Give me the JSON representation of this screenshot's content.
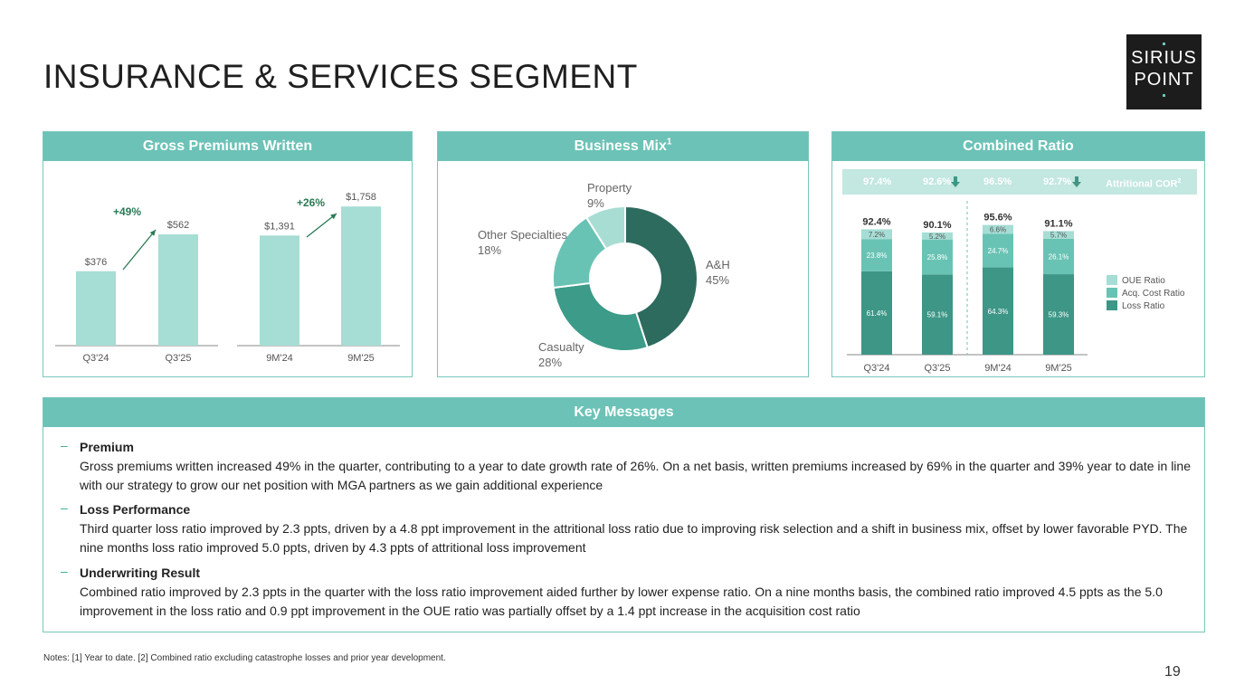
{
  "page": {
    "title": "INSURANCE & SERVICES SEGMENT",
    "logo": {
      "line1": "SIRIUS",
      "line2": "POINT"
    },
    "page_number": "19",
    "notes": "Notes: [1] Year to date. [2] Combined ratio excluding catastrophe losses and prior year development."
  },
  "gpw": {
    "header": "Gross Premiums Written",
    "growth_quarter": "+49%",
    "growth_ytd": "+26%"
  },
  "business_mix": {
    "header": "Business Mix",
    "header_sup": "1",
    "labels": {
      "ah": {
        "name": "A&H",
        "pct": "45%"
      },
      "casualty": {
        "name": "Casualty",
        "pct": "28%"
      },
      "other": {
        "name": "Other Specialties",
        "pct": "18%"
      },
      "property": {
        "name": "Property",
        "pct": "9%"
      }
    }
  },
  "combined_ratio": {
    "header": "Combined Ratio",
    "attritional_cor": [
      "97.4%",
      "92.6%",
      "96.5%",
      "92.7%"
    ],
    "attritional_label": "Attritional COR",
    "attritional_sup": "2",
    "totals": [
      "92.4%",
      "90.1%",
      "95.6%",
      "91.1%"
    ],
    "legend": [
      "OUE Ratio",
      "Acq. Cost Ratio",
      "Loss Ratio"
    ]
  },
  "key_messages": {
    "header": "Key Messages",
    "items": [
      {
        "heading": "Premium",
        "text": "Gross premiums written increased 49% in the quarter, contributing to a year to date growth rate of 26%. On a net basis, written premiums increased by 69% in the quarter and 39% year to date in line with our strategy to grow our net position with MGA partners as we gain additional experience"
      },
      {
        "heading": "Loss Performance",
        "text": "Third quarter loss ratio improved by 2.3 ppts, driven by a 4.8 ppt improvement in the attritional loss ratio due to improving risk selection and a shift in business mix, offset by lower favorable PYD. The nine months loss ratio improved 5.0 ppts, driven by 4.3 ppts of attritional loss improvement"
      },
      {
        "heading": "Underwriting Result",
        "text": "Combined ratio improved by 2.3 ppts in the quarter with the loss ratio improvement aided further by lower expense ratio. On a nine months basis, the combined ratio improved 4.5 ppts as the 5.0 improvement in the loss ratio and 0.9 ppt improvement in the OUE ratio was partially offset by a 1.4 ppt increase in the acquisition cost ratio"
      }
    ]
  },
  "colors": {
    "accent": "#6cc2b6",
    "bar_light": "#a6ddd4",
    "pie_ah": "#2e6b5f",
    "pie_casualty": "#3c9b89",
    "pie_other": "#69c3b4",
    "pie_property": "#a8ddd4",
    "loss": "#3d9686",
    "acq": "#69c3b4",
    "oue": "#a6ddd4"
  },
  "chart_data": [
    {
      "type": "bar",
      "title": "Gross Premiums Written",
      "categories": [
        "Q3'24",
        "Q3'25",
        "9M'24",
        "9M'25"
      ],
      "values": [
        376,
        562,
        1391,
        1758
      ],
      "value_labels": [
        "$376",
        "$562",
        "$1,391",
        "$1,758"
      ],
      "groups": [
        {
          "categories": [
            "Q3'24",
            "Q3'25"
          ],
          "ylim": [
            0,
            800
          ]
        },
        {
          "categories": [
            "9M'24",
            "9M'25"
          ],
          "ylim": [
            0,
            2000
          ]
        }
      ]
    },
    {
      "type": "pie",
      "title": "Business Mix",
      "categories": [
        "A&H",
        "Casualty",
        "Other Specialties",
        "Property"
      ],
      "values": [
        45,
        28,
        18,
        9
      ]
    },
    {
      "type": "bar",
      "stacked": true,
      "title": "Combined Ratio",
      "categories": [
        "Q3'24",
        "Q3'25",
        "9M'24",
        "9M'25"
      ],
      "series": [
        {
          "name": "Loss Ratio",
          "values": [
            61.4,
            59.1,
            64.3,
            59.3
          ],
          "labels": [
            "61.4%",
            "59.1%",
            "64.3%",
            "59.3%"
          ]
        },
        {
          "name": "Acq. Cost Ratio",
          "values": [
            23.8,
            25.8,
            24.7,
            26.1
          ],
          "labels": [
            "23.8%",
            "25.8%",
            "24.7%",
            "26.1%"
          ]
        },
        {
          "name": "OUE Ratio",
          "values": [
            7.2,
            5.2,
            6.6,
            5.7
          ],
          "labels": [
            "7.2%",
            "5.2%",
            "6.6%",
            "5.7%"
          ]
        }
      ],
      "totals": [
        92.4,
        90.1,
        95.6,
        91.1
      ],
      "ylim": [
        0,
        100
      ]
    }
  ]
}
